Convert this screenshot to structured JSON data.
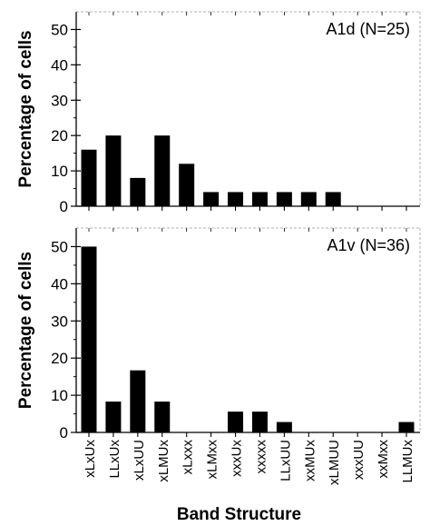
{
  "chart_data": [
    {
      "type": "bar",
      "annotation": "A1d (N=25)",
      "ylabel": "Percentage of cells",
      "xlabel": "",
      "ylim": [
        0,
        55
      ],
      "yticks": [
        0,
        10,
        20,
        30,
        40,
        50
      ],
      "grid": false,
      "categories": [
        "xLxUx",
        "LLxUx",
        "xLxUU",
        "xLMUx",
        "xLxxx",
        "xLMxx",
        "xxxUx",
        "xxxxx",
        "LLxUU",
        "xxMUx",
        "xLMUU",
        "xxxUU",
        "xxMxx",
        "LLMUx"
      ],
      "values": [
        16,
        20,
        8,
        20,
        12,
        4,
        4,
        4,
        4,
        4,
        4,
        0,
        0,
        0
      ]
    },
    {
      "type": "bar",
      "annotation": "A1v (N=36)",
      "ylabel": "Percentage of cells",
      "xlabel": "Band Structure",
      "ylim": [
        0,
        55
      ],
      "yticks": [
        0,
        10,
        20,
        30,
        40,
        50
      ],
      "grid": false,
      "categories": [
        "xLxUx",
        "LLxUx",
        "xLxUU",
        "xLMUx",
        "xLxxx",
        "xLMxx",
        "xxxUx",
        "xxxxx",
        "LLxUU",
        "xxMUx",
        "xLMUU",
        "xxxUU",
        "xxMxx",
        "LLMUx"
      ],
      "values": [
        50,
        8.3,
        16.7,
        8.3,
        0,
        0,
        5.6,
        5.6,
        2.8,
        0,
        0,
        0,
        0,
        2.8
      ]
    }
  ]
}
